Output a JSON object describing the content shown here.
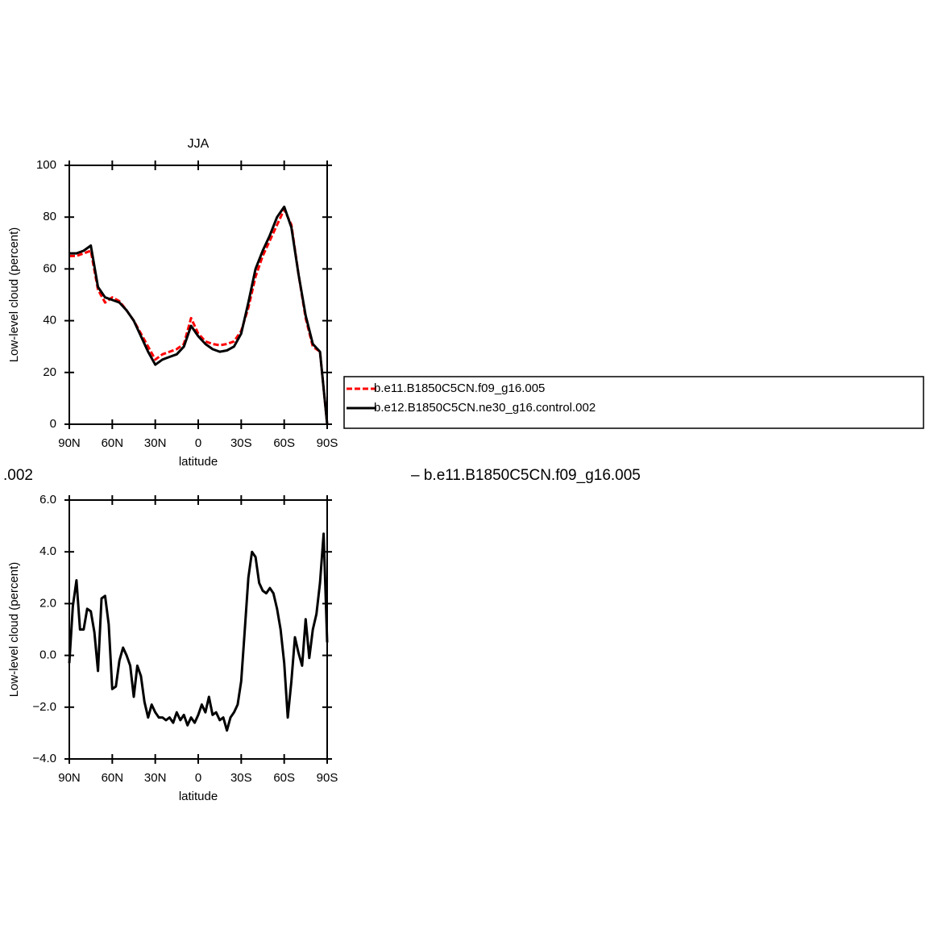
{
  "chart_data": [
    {
      "type": "line",
      "title": "JJA",
      "x_label": "latitude",
      "y_label": "Low-level cloud (percent)",
      "x": [
        90,
        85,
        80,
        75,
        70,
        65,
        60,
        55,
        50,
        45,
        40,
        35,
        30,
        25,
        20,
        15,
        10,
        5,
        0,
        -5,
        -10,
        -15,
        -20,
        -25,
        -30,
        -35,
        -40,
        -45,
        -50,
        -55,
        -60,
        -65,
        -70,
        -75,
        -80,
        -85,
        -90
      ],
      "series": [
        {
          "name": "b.e11.B1850C5CN.f09_g16.005",
          "color": "#ff0000",
          "linestyle": "dashed",
          "values": [
            65,
            65,
            66,
            67,
            52,
            47,
            49,
            47.5,
            44,
            40,
            35,
            30,
            25,
            27,
            28,
            29,
            31,
            41,
            35,
            32,
            31,
            30.5,
            31,
            32,
            36,
            45,
            57,
            65,
            71,
            77,
            83,
            77,
            58,
            41,
            30,
            28,
            0
          ]
        },
        {
          "name": "b.e12.B1850C5CN.ne30_g16.control.002",
          "color": "#000000",
          "linestyle": "solid",
          "values": [
            66,
            66,
            67,
            69,
            53,
            49,
            48,
            47,
            44,
            40,
            34,
            28,
            23,
            25,
            26,
            27,
            30,
            38,
            34,
            31,
            29,
            28,
            28.5,
            30,
            35,
            47,
            60,
            67,
            73,
            80,
            84,
            76,
            58,
            42,
            31,
            28,
            0
          ]
        }
      ],
      "xlim": [
        90,
        -90
      ],
      "xticks": [
        {
          "value": 90,
          "label": "90N"
        },
        {
          "value": 60,
          "label": "60N"
        },
        {
          "value": 30,
          "label": "30N"
        },
        0,
        {
          "value": -30,
          "label": "30S"
        },
        {
          "value": -60,
          "label": "60S"
        },
        {
          "value": -90,
          "label": "90S"
        }
      ],
      "ylim": [
        0,
        100
      ],
      "yticks": [
        0,
        20,
        40,
        60,
        80,
        100
      ],
      "legend": "right"
    },
    {
      "type": "line",
      "x_label": "latitude",
      "y_label": "Low-level cloud (percent)",
      "annotations": [
        ".002",
        "– b.e11.B1850C5CN.f09_g16.005"
      ],
      "x": [
        90,
        87.5,
        85,
        82.5,
        80,
        77.5,
        75,
        72.5,
        70,
        67.5,
        65,
        62.5,
        60,
        57.5,
        55,
        52.5,
        50,
        47.5,
        45,
        42.5,
        40,
        37.5,
        35,
        32.5,
        30,
        27.5,
        25,
        22.5,
        20,
        17.5,
        15,
        12.5,
        10,
        7.5,
        5,
        2.5,
        0,
        -2.5,
        -5,
        -7.5,
        -10,
        -12.5,
        -15,
        -17.5,
        -20,
        -22.5,
        -25,
        -27.5,
        -30,
        -32.5,
        -35,
        -37.5,
        -40,
        -42.5,
        -45,
        -47.5,
        -50,
        -52.5,
        -55,
        -57.5,
        -60,
        -62.5,
        -65,
        -67.5,
        -70,
        -72.5,
        -75,
        -77.5,
        -80,
        -82.5,
        -85,
        -87.5,
        -90
      ],
      "series": [
        {
          "color": "#000000",
          "linestyle": "solid",
          "values": [
            -0.3,
            1.9,
            2.9,
            1.0,
            1.0,
            1.8,
            1.7,
            0.9,
            -0.6,
            2.2,
            2.3,
            1.2,
            -1.3,
            -1.2,
            -0.2,
            0.3,
            0.0,
            -0.4,
            -1.6,
            -0.4,
            -0.8,
            -1.8,
            -2.4,
            -1.9,
            -2.2,
            -2.4,
            -2.4,
            -2.5,
            -2.4,
            -2.6,
            -2.2,
            -2.5,
            -2.3,
            -2.7,
            -2.4,
            -2.6,
            -2.3,
            -1.9,
            -2.2,
            -1.6,
            -2.3,
            -2.2,
            -2.5,
            -2.4,
            -2.9,
            -2.4,
            -2.2,
            -1.9,
            -1.0,
            1.0,
            3.0,
            4.0,
            3.8,
            2.8,
            2.5,
            2.4,
            2.6,
            2.4,
            1.8,
            1.0,
            -0.3,
            -2.4,
            -1.0,
            0.7,
            0.1,
            -0.4,
            1.4,
            -0.1,
            1.0,
            1.6,
            2.8,
            4.7,
            0.5
          ]
        }
      ],
      "xlim": [
        90,
        -90
      ],
      "xticks": [
        {
          "value": 90,
          "label": "90N"
        },
        {
          "value": 60,
          "label": "60N"
        },
        {
          "value": 30,
          "label": "30N"
        },
        0,
        {
          "value": -30,
          "label": "30S"
        },
        {
          "value": -60,
          "label": "60S"
        },
        {
          "value": -90,
          "label": "90S"
        }
      ],
      "ylim": [
        -4,
        6
      ],
      "yticks": [
        {
          "value": -4,
          "label": "−4.0"
        },
        {
          "value": -2,
          "label": "−2.0"
        },
        {
          "value": 0,
          "label": "0.0"
        },
        {
          "value": 2,
          "label": "2.0"
        },
        {
          "value": 4,
          "label": "4.0"
        },
        {
          "value": 6,
          "label": "6.0"
        }
      ]
    }
  ]
}
